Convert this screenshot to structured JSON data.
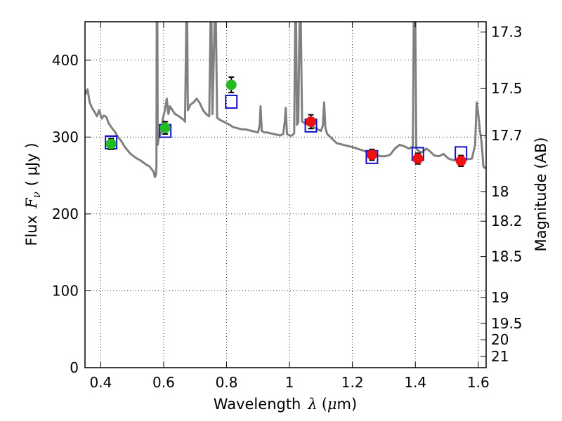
{
  "chart_data": {
    "type": "scatter",
    "xlabel": "Wavelength",
    "xlabel_symbol": "λ",
    "xlabel_unit_open": "(",
    "xlabel_unit_mu": "μ",
    "xlabel_unit_rest": "m)",
    "ylabel_prefix": "Flux",
    "ylabel_symbol": "F",
    "ylabel_sub": "ν",
    "ylabel_unit": "( μJy )",
    "y2label": "Magnitude (AB)",
    "xlim": [
      0.35,
      1.625
    ],
    "ylim": [
      0,
      450
    ],
    "grid": true,
    "x_ticks": [
      {
        "value": 0.4,
        "label": "0.4"
      },
      {
        "value": 0.6,
        "label": "0.6"
      },
      {
        "value": 0.8,
        "label": "0.8"
      },
      {
        "value": 1.0,
        "label": "1"
      },
      {
        "value": 1.2,
        "label": "1.2"
      },
      {
        "value": 1.4,
        "label": "1.4"
      },
      {
        "value": 1.6,
        "label": "1.6"
      }
    ],
    "y_ticks": [
      {
        "value": 0,
        "label": "0"
      },
      {
        "value": 100,
        "label": "100"
      },
      {
        "value": 200,
        "label": "200"
      },
      {
        "value": 300,
        "label": "300"
      },
      {
        "value": 400,
        "label": "400"
      }
    ],
    "y2_ticks": [
      {
        "value": 17.3,
        "label": "17.3"
      },
      {
        "value": 17.5,
        "label": "17.5"
      },
      {
        "value": 17.7,
        "label": "17.7"
      },
      {
        "value": 18,
        "label": "18"
      },
      {
        "value": 18.2,
        "label": "18.2"
      },
      {
        "value": 18.5,
        "label": "18.5"
      },
      {
        "value": 19,
        "label": "19"
      },
      {
        "value": 19.5,
        "label": "19.5"
      },
      {
        "value": 20,
        "label": "20"
      },
      {
        "value": 21,
        "label": "21"
      }
    ],
    "observed_points": [
      {
        "x": 0.433,
        "y": 291,
        "err": 7,
        "color": "#22bb22"
      },
      {
        "x": 0.605,
        "y": 312,
        "err": 8,
        "color": "#22bb22"
      },
      {
        "x": 0.815,
        "y": 368,
        "err": 10,
        "color": "#22bb22"
      },
      {
        "x": 1.068,
        "y": 320,
        "err": 9,
        "color": "#ee1111"
      },
      {
        "x": 1.262,
        "y": 277,
        "err": 7,
        "color": "#ee1111"
      },
      {
        "x": 1.408,
        "y": 272,
        "err": 7,
        "color": "#ee1111"
      },
      {
        "x": 1.545,
        "y": 269,
        "err": 7,
        "color": "#ee1111"
      }
    ],
    "model_points": [
      {
        "x": 0.433,
        "y": 293
      },
      {
        "x": 0.605,
        "y": 308
      },
      {
        "x": 0.815,
        "y": 346
      },
      {
        "x": 1.068,
        "y": 315
      },
      {
        "x": 1.262,
        "y": 274
      },
      {
        "x": 1.408,
        "y": 278
      },
      {
        "x": 1.545,
        "y": 279
      }
    ],
    "spectrum": [
      [
        0.35,
        355
      ],
      [
        0.358,
        362
      ],
      [
        0.365,
        345
      ],
      [
        0.372,
        338
      ],
      [
        0.38,
        333
      ],
      [
        0.388,
        327
      ],
      [
        0.395,
        335
      ],
      [
        0.403,
        324
      ],
      [
        0.41,
        328
      ],
      [
        0.418,
        326
      ],
      [
        0.425,
        318
      ],
      [
        0.435,
        312
      ],
      [
        0.445,
        307
      ],
      [
        0.455,
        300
      ],
      [
        0.465,
        295
      ],
      [
        0.475,
        288
      ],
      [
        0.485,
        283
      ],
      [
        0.495,
        278
      ],
      [
        0.505,
        275
      ],
      [
        0.515,
        272
      ],
      [
        0.525,
        270
      ],
      [
        0.535,
        267
      ],
      [
        0.545,
        264
      ],
      [
        0.555,
        262
      ],
      [
        0.562,
        258
      ],
      [
        0.568,
        255
      ],
      [
        0.572,
        248
      ],
      [
        0.575,
        250
      ],
      [
        0.577,
        262
      ],
      [
        0.578,
        450
      ],
      [
        0.58,
        450
      ],
      [
        0.581,
        290
      ],
      [
        0.585,
        300
      ],
      [
        0.592,
        305
      ],
      [
        0.598,
        325
      ],
      [
        0.604,
        335
      ],
      [
        0.61,
        350
      ],
      [
        0.615,
        330
      ],
      [
        0.62,
        340
      ],
      [
        0.628,
        335
      ],
      [
        0.636,
        330
      ],
      [
        0.645,
        328
      ],
      [
        0.655,
        325
      ],
      [
        0.662,
        323
      ],
      [
        0.668,
        320
      ],
      [
        0.672,
        450
      ],
      [
        0.675,
        450
      ],
      [
        0.677,
        335
      ],
      [
        0.685,
        342
      ],
      [
        0.695,
        345
      ],
      [
        0.705,
        350
      ],
      [
        0.715,
        344
      ],
      [
        0.725,
        335
      ],
      [
        0.735,
        330
      ],
      [
        0.745,
        327
      ],
      [
        0.749,
        450
      ],
      [
        0.752,
        450
      ],
      [
        0.755,
        330
      ],
      [
        0.762,
        450
      ],
      [
        0.766,
        450
      ],
      [
        0.77,
        325
      ],
      [
        0.78,
        322
      ],
      [
        0.79,
        320
      ],
      [
        0.8,
        318
      ],
      [
        0.81,
        316
      ],
      [
        0.82,
        313
      ],
      [
        0.83,
        312
      ],
      [
        0.84,
        311
      ],
      [
        0.85,
        310
      ],
      [
        0.86,
        310
      ],
      [
        0.87,
        309
      ],
      [
        0.88,
        308
      ],
      [
        0.89,
        307
      ],
      [
        0.9,
        306
      ],
      [
        0.905,
        315
      ],
      [
        0.908,
        340
      ],
      [
        0.912,
        308
      ],
      [
        0.92,
        306
      ],
      [
        0.93,
        306
      ],
      [
        0.94,
        305
      ],
      [
        0.95,
        304
      ],
      [
        0.96,
        303
      ],
      [
        0.97,
        302
      ],
      [
        0.98,
        304
      ],
      [
        0.985,
        320
      ],
      [
        0.988,
        338
      ],
      [
        0.992,
        304
      ],
      [
        1.0,
        302
      ],
      [
        1.008,
        302
      ],
      [
        1.015,
        305
      ],
      [
        1.018,
        450
      ],
      [
        1.021,
        450
      ],
      [
        1.024,
        316
      ],
      [
        1.028,
        320
      ],
      [
        1.032,
        450
      ],
      [
        1.036,
        450
      ],
      [
        1.04,
        320
      ],
      [
        1.05,
        318
      ],
      [
        1.06,
        316
      ],
      [
        1.07,
        314
      ],
      [
        1.08,
        312
      ],
      [
        1.09,
        310
      ],
      [
        1.1,
        308
      ],
      [
        1.106,
        315
      ],
      [
        1.11,
        345
      ],
      [
        1.114,
        312
      ],
      [
        1.12,
        304
      ],
      [
        1.13,
        300
      ],
      [
        1.14,
        296
      ],
      [
        1.15,
        292
      ],
      [
        1.16,
        291
      ],
      [
        1.17,
        290
      ],
      [
        1.18,
        289
      ],
      [
        1.19,
        288
      ],
      [
        1.2,
        287
      ],
      [
        1.215,
        285
      ],
      [
        1.23,
        283
      ],
      [
        1.245,
        281
      ],
      [
        1.26,
        279
      ],
      [
        1.275,
        277
      ],
      [
        1.29,
        275
      ],
      [
        1.305,
        275
      ],
      [
        1.32,
        277
      ],
      [
        1.335,
        285
      ],
      [
        1.35,
        290
      ],
      [
        1.365,
        288
      ],
      [
        1.38,
        285
      ],
      [
        1.392,
        288
      ],
      [
        1.395,
        450
      ],
      [
        1.4,
        450
      ],
      [
        1.403,
        285
      ],
      [
        1.41,
        282
      ],
      [
        1.42,
        280
      ],
      [
        1.435,
        285
      ],
      [
        1.445,
        282
      ],
      [
        1.46,
        276
      ],
      [
        1.475,
        275
      ],
      [
        1.49,
        278
      ],
      [
        1.505,
        272
      ],
      [
        1.52,
        270
      ],
      [
        1.535,
        269
      ],
      [
        1.55,
        270
      ],
      [
        1.565,
        271
      ],
      [
        1.58,
        272
      ],
      [
        1.59,
        290
      ],
      [
        1.595,
        345
      ],
      [
        1.6,
        330
      ],
      [
        1.605,
        310
      ],
      [
        1.61,
        295
      ],
      [
        1.614,
        275
      ],
      [
        1.616,
        262
      ],
      [
        1.62,
        260
      ],
      [
        1.625,
        260
      ]
    ],
    "colors": {
      "spectrum": "#808080",
      "model_box": "#1111cc",
      "errorbar": "#000000",
      "grid": "#000000"
    }
  }
}
